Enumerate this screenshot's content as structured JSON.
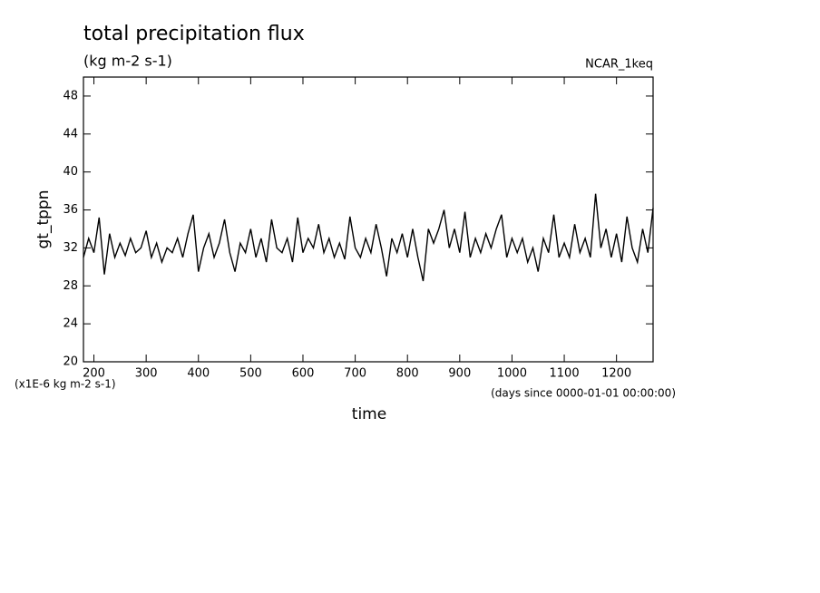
{
  "chart_data": {
    "type": "line",
    "title": "total precipitation flux",
    "subtitle": "(kg m-2 s-1)",
    "source_label": "NCAR_1keq",
    "ylabel": "gt_tppn",
    "xlabel": "time",
    "y_unit_note": "(x1E-6 kg m-2 s-1)",
    "x_unit_note": "(days since 0000-01-01 00:00:00)",
    "xlim": [
      180,
      1270
    ],
    "ylim": [
      20,
      50
    ],
    "xticks": [
      200,
      300,
      400,
      500,
      600,
      700,
      800,
      900,
      1000,
      1100,
      1200
    ],
    "yticks": [
      20,
      24,
      28,
      32,
      36,
      40,
      44,
      48
    ],
    "color": "#000000",
    "x": [
      180,
      190,
      200,
      210,
      220,
      230,
      240,
      250,
      260,
      270,
      280,
      290,
      300,
      310,
      320,
      330,
      340,
      350,
      360,
      370,
      380,
      390,
      400,
      410,
      420,
      430,
      440,
      450,
      460,
      470,
      480,
      490,
      500,
      510,
      520,
      530,
      540,
      550,
      560,
      570,
      580,
      590,
      600,
      610,
      620,
      630,
      640,
      650,
      660,
      670,
      680,
      690,
      700,
      710,
      720,
      730,
      740,
      750,
      760,
      770,
      780,
      790,
      800,
      810,
      820,
      830,
      840,
      850,
      860,
      870,
      880,
      890,
      900,
      910,
      920,
      930,
      940,
      950,
      960,
      970,
      980,
      990,
      1000,
      1010,
      1020,
      1030,
      1040,
      1050,
      1060,
      1070,
      1080,
      1090,
      1100,
      1110,
      1120,
      1130,
      1140,
      1150,
      1160,
      1170,
      1180,
      1190,
      1200,
      1210,
      1220,
      1230,
      1240,
      1250,
      1260,
      1270
    ],
    "values": [
      31,
      33,
      31.5,
      35.2,
      29.2,
      33.5,
      31,
      32.5,
      31.2,
      33,
      31.5,
      32,
      33.8,
      31,
      32.5,
      30.5,
      32,
      31.5,
      33,
      31,
      33.5,
      35.5,
      29.5,
      32,
      33.5,
      31,
      32.5,
      35,
      31.5,
      29.5,
      32.5,
      31.5,
      34,
      31,
      33,
      30.5,
      35,
      32,
      31.5,
      33,
      30.5,
      35.2,
      31.5,
      33,
      32,
      34.5,
      31.5,
      33,
      31,
      32.5,
      30.8,
      35.3,
      32,
      31,
      33,
      31.5,
      34.5,
      32,
      29,
      33,
      31.5,
      33.5,
      31,
      34,
      31,
      28.5,
      34,
      32.5,
      34,
      36,
      32,
      34,
      31.5,
      35.8,
      31,
      33,
      31.5,
      33.5,
      32,
      34,
      35.5,
      31,
      33,
      31.5,
      33,
      30.5,
      32,
      29.5,
      33,
      31.5,
      35.5,
      31,
      32.5,
      31,
      34.5,
      31.5,
      33,
      31,
      37.7,
      32,
      34,
      31,
      33.5,
      30.5,
      35.3,
      32,
      30.5,
      34,
      31.5,
      36.2
    ]
  }
}
